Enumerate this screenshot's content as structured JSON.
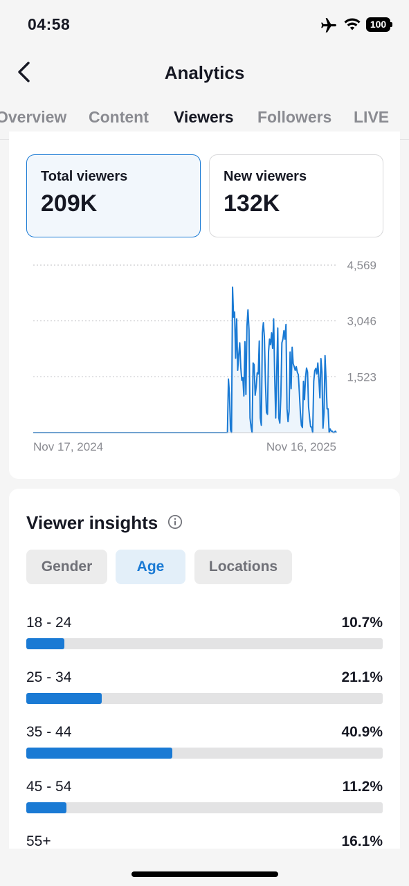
{
  "status_bar": {
    "time": "04:58",
    "battery": "100"
  },
  "header": {
    "title": "Analytics"
  },
  "tabs": [
    {
      "label": "Overview",
      "active": false
    },
    {
      "label": "Content",
      "active": false
    },
    {
      "label": "Viewers",
      "active": true
    },
    {
      "label": "Followers",
      "active": false
    },
    {
      "label": "LIVE",
      "active": false
    }
  ],
  "metrics": {
    "total": {
      "label": "Total viewers",
      "value": "209K"
    },
    "new": {
      "label": "New viewers",
      "value": "132K"
    }
  },
  "chart_data": {
    "type": "line",
    "x_start_label": "Nov 17, 2024",
    "x_end_label": "Nov 16, 2025",
    "y_ticks": [
      "4,569",
      "3,046",
      "1,523"
    ],
    "y_tick_values": [
      4569,
      3046,
      1523
    ],
    "ylim": [
      0,
      4569
    ],
    "series_color": "#1a7ad4",
    "values": [
      0,
      0,
      0,
      0,
      0,
      0,
      0,
      0,
      0,
      0,
      0,
      0,
      0,
      0,
      0,
      0,
      0,
      0,
      0,
      0,
      0,
      0,
      0,
      0,
      0,
      0,
      0,
      0,
      0,
      0,
      0,
      0,
      0,
      0,
      0,
      0,
      0,
      0,
      0,
      0,
      0,
      0,
      0,
      0,
      0,
      0,
      0,
      0,
      0,
      0,
      0,
      0,
      0,
      0,
      0,
      0,
      0,
      0,
      0,
      0,
      0,
      0,
      0,
      0,
      0,
      0,
      0,
      0,
      0,
      0,
      0,
      0,
      0,
      0,
      0,
      0,
      0,
      0,
      0,
      0,
      0,
      0,
      0,
      0,
      0,
      0,
      0,
      0,
      0,
      0,
      0,
      0,
      0,
      0,
      0,
      0,
      0,
      0,
      0,
      0,
      0,
      0,
      0,
      0,
      0,
      0,
      0,
      0,
      0,
      0,
      0,
      0,
      0,
      0,
      0,
      0,
      0,
      0,
      0,
      0,
      0,
      0,
      0,
      0,
      0,
      0,
      0,
      0,
      0,
      0,
      0,
      0,
      0,
      0,
      0,
      0,
      0,
      0,
      0,
      0,
      0,
      0,
      0,
      0,
      0,
      0,
      0,
      0,
      0,
      0,
      0,
      0,
      0,
      0,
      0,
      0,
      0,
      0,
      0,
      0,
      0,
      0,
      0,
      0,
      0,
      0,
      0,
      0,
      0,
      0,
      0,
      0,
      0,
      0,
      0,
      0,
      0,
      0,
      0,
      0,
      0,
      0,
      0,
      0,
      0,
      0,
      0,
      0,
      0,
      0,
      1460,
      1050,
      80,
      0,
      3968,
      3150,
      3290,
      2030,
      3100,
      1700,
      2120,
      2450,
      1780,
      1430,
      1500,
      1000,
      2480,
      1040,
      2900,
      3350,
      2810,
      400,
      150,
      0,
      1900,
      1850,
      1020,
      1250,
      1630,
      1600,
      2500,
      400,
      200,
      2720,
      3000,
      2600,
      1400,
      550,
      500,
      2200,
      2550,
      2400,
      2720,
      2300,
      3100,
      1550,
      400,
      1650,
      2850,
      400,
      260,
      1000,
      2450,
      2550,
      2780,
      2550,
      2950,
      650,
      300,
      580,
      2200,
      1200,
      2330,
      1880,
      1800,
      1700,
      1800,
      1650,
      1580,
      1100,
      550,
      200,
      140,
      1400,
      900,
      1500,
      1760,
      1650,
      700,
      400,
      160,
      150,
      0,
      1400,
      1690,
      1750,
      1600,
      1900,
      1480,
      950,
      2020,
      1650,
      120,
      550,
      2100,
      1450,
      650,
      650,
      0,
      100,
      40,
      40,
      0,
      0,
      40,
      0
    ]
  },
  "insights": {
    "title": "Viewer insights",
    "segments": [
      {
        "label": "Gender",
        "active": false
      },
      {
        "label": "Age",
        "active": true
      },
      {
        "label": "Locations",
        "active": false
      }
    ],
    "ages": [
      {
        "label": "18 - 24",
        "pct": "10.7%",
        "value": 10.7
      },
      {
        "label": "25 - 34",
        "pct": "21.1%",
        "value": 21.1
      },
      {
        "label": "35 - 44",
        "pct": "40.9%",
        "value": 40.9
      },
      {
        "label": "45 - 54",
        "pct": "11.2%",
        "value": 11.2
      },
      {
        "label": "55+",
        "pct": "16.1%",
        "value": 16.1
      }
    ]
  },
  "icons": {
    "back": "chevron-left-icon",
    "info": "info-icon",
    "airplane": "airplane-icon",
    "wifi": "wifi-icon"
  },
  "colors": {
    "accent": "#1a7ad4",
    "text": "#161823",
    "muted": "#8a8b91"
  }
}
